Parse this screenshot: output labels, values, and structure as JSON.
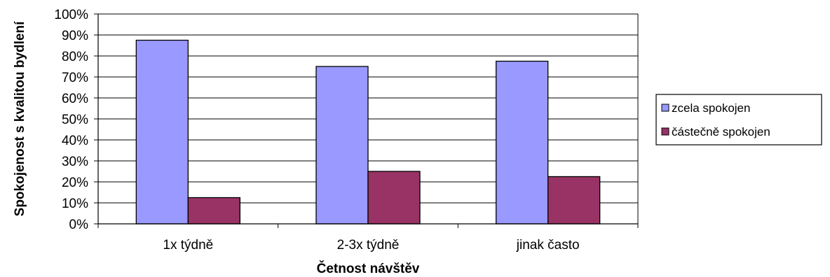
{
  "chart_data": {
    "type": "bar",
    "categories": [
      "1x týdně",
      "2-3x týdně",
      "jinak často"
    ],
    "series": [
      {
        "name": "zcela spokojen",
        "values": [
          87.5,
          75.0,
          77.5
        ],
        "color": "#9999ff"
      },
      {
        "name": "částečně spokojen",
        "values": [
          12.5,
          25.0,
          22.5
        ],
        "color": "#993366"
      }
    ],
    "title": "",
    "xlabel": "Četnost návštěv",
    "ylabel": "Spokojenost s kvalitou bydlení",
    "ylim": [
      0,
      100
    ],
    "yticks": [
      "0%",
      "10%",
      "20%",
      "30%",
      "40%",
      "50%",
      "60%",
      "70%",
      "80%",
      "90%",
      "100%"
    ],
    "grid": true,
    "legend_position": "right"
  }
}
